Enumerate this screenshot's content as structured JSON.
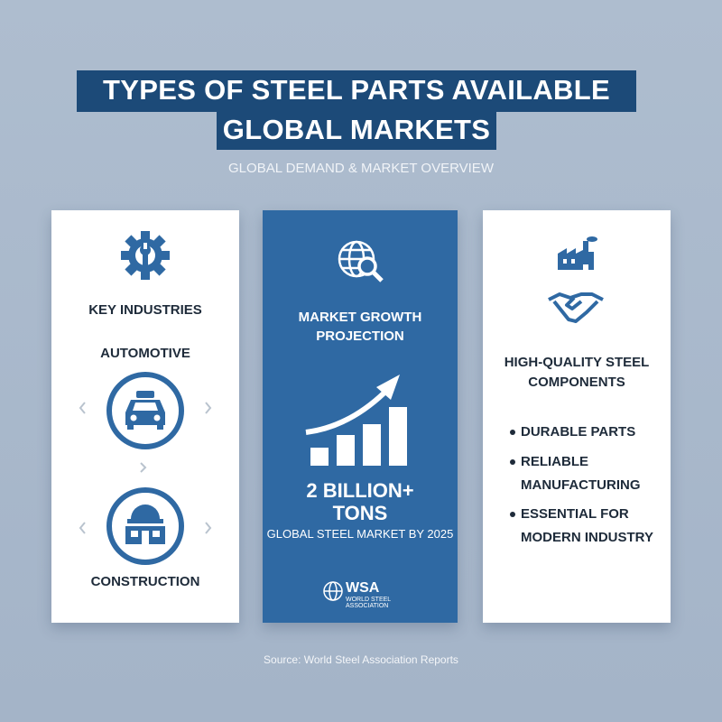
{
  "header": {
    "title_lines": [
      "TYPES OF STEEL PARTS AVAILABLE FOR",
      "GLOBAL MARKETS"
    ],
    "subtitle": "GLOBAL DEMAND & MARKET OVERVIEW"
  },
  "cards": [
    {
      "heading": "KEY INDUSTRIES",
      "items": [
        "AUTOMOTIVE",
        "CONSTRUCTION"
      ]
    },
    {
      "heading_lines": [
        "MARKET GROWTH",
        "PROJECTION"
      ],
      "figure_lines": [
        "2 BILLION+",
        "TONS"
      ],
      "caption": "GLOBAL STEEL MARKET BY 2025",
      "logo": {
        "abbr": "WSA",
        "lines": [
          "WORLD STEEL",
          "ASSOCIATION"
        ]
      }
    },
    {
      "heading_lines": [
        "HIGH-QUALITY STEEL",
        "COMPONENTS"
      ],
      "bullets": [
        [
          "DURABLE PARTS"
        ],
        [
          "RELIABLE",
          "MANUFACTURING"
        ],
        [
          "ESSENTIAL FOR",
          "MODERN INDUSTRY"
        ]
      ]
    }
  ],
  "source": "Source: World Steel Association Reports"
}
